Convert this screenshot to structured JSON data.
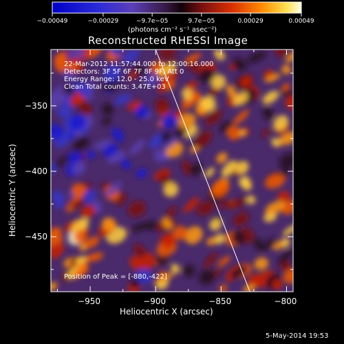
{
  "chart_data": {
    "type": "heatmap",
    "title": "Reconstructed RHESSI Image",
    "xlabel": "Heliocentric X (arcsec)",
    "ylabel": "Heliocentric Y (arcsec)",
    "xlim": [
      -980,
      -795
    ],
    "ylim": [
      -492,
      -307
    ],
    "x_ticks": [
      -950,
      -900,
      -850,
      -800
    ],
    "x_tick_labels": [
      "−950",
      "−900",
      "−850",
      "−800"
    ],
    "y_ticks": [
      -350,
      -400,
      -450
    ],
    "y_tick_labels": [
      "−350",
      "−400",
      "−450"
    ],
    "colorbar": {
      "tick_labels": [
        "−0.00049",
        "−0.00029",
        "−9.7e−05",
        "9.7e−05",
        "0.00029",
        "0.00049"
      ],
      "tick_values": [
        -0.00049,
        -0.00029,
        -9.7e-05,
        9.7e-05,
        0.00029,
        0.00049
      ],
      "range": [
        -0.00049,
        0.00049
      ],
      "unit_label": "(photons cm⁻² s⁻¹ asec⁻²)"
    },
    "annotations": {
      "time": "22-Mar-2012 11:57:44.000 to 12:00:16.000",
      "detectors": "Detectors: 3F 5F 6F 7F 8F 9F, Att 0",
      "energy": "Energy Range: 12.0 - 25.0 keV",
      "method": "Clean    Total counts: 3.47E+03",
      "peak": "Position of Peak = [-880,-422]"
    },
    "limb_line": {
      "x": [
        -900,
        -828
      ],
      "y": [
        -307,
        -492
      ]
    },
    "colors": {
      "background": "#000000",
      "limb": "#ffffff"
    }
  },
  "footer": {
    "date": "5-May-2014 19:53"
  }
}
